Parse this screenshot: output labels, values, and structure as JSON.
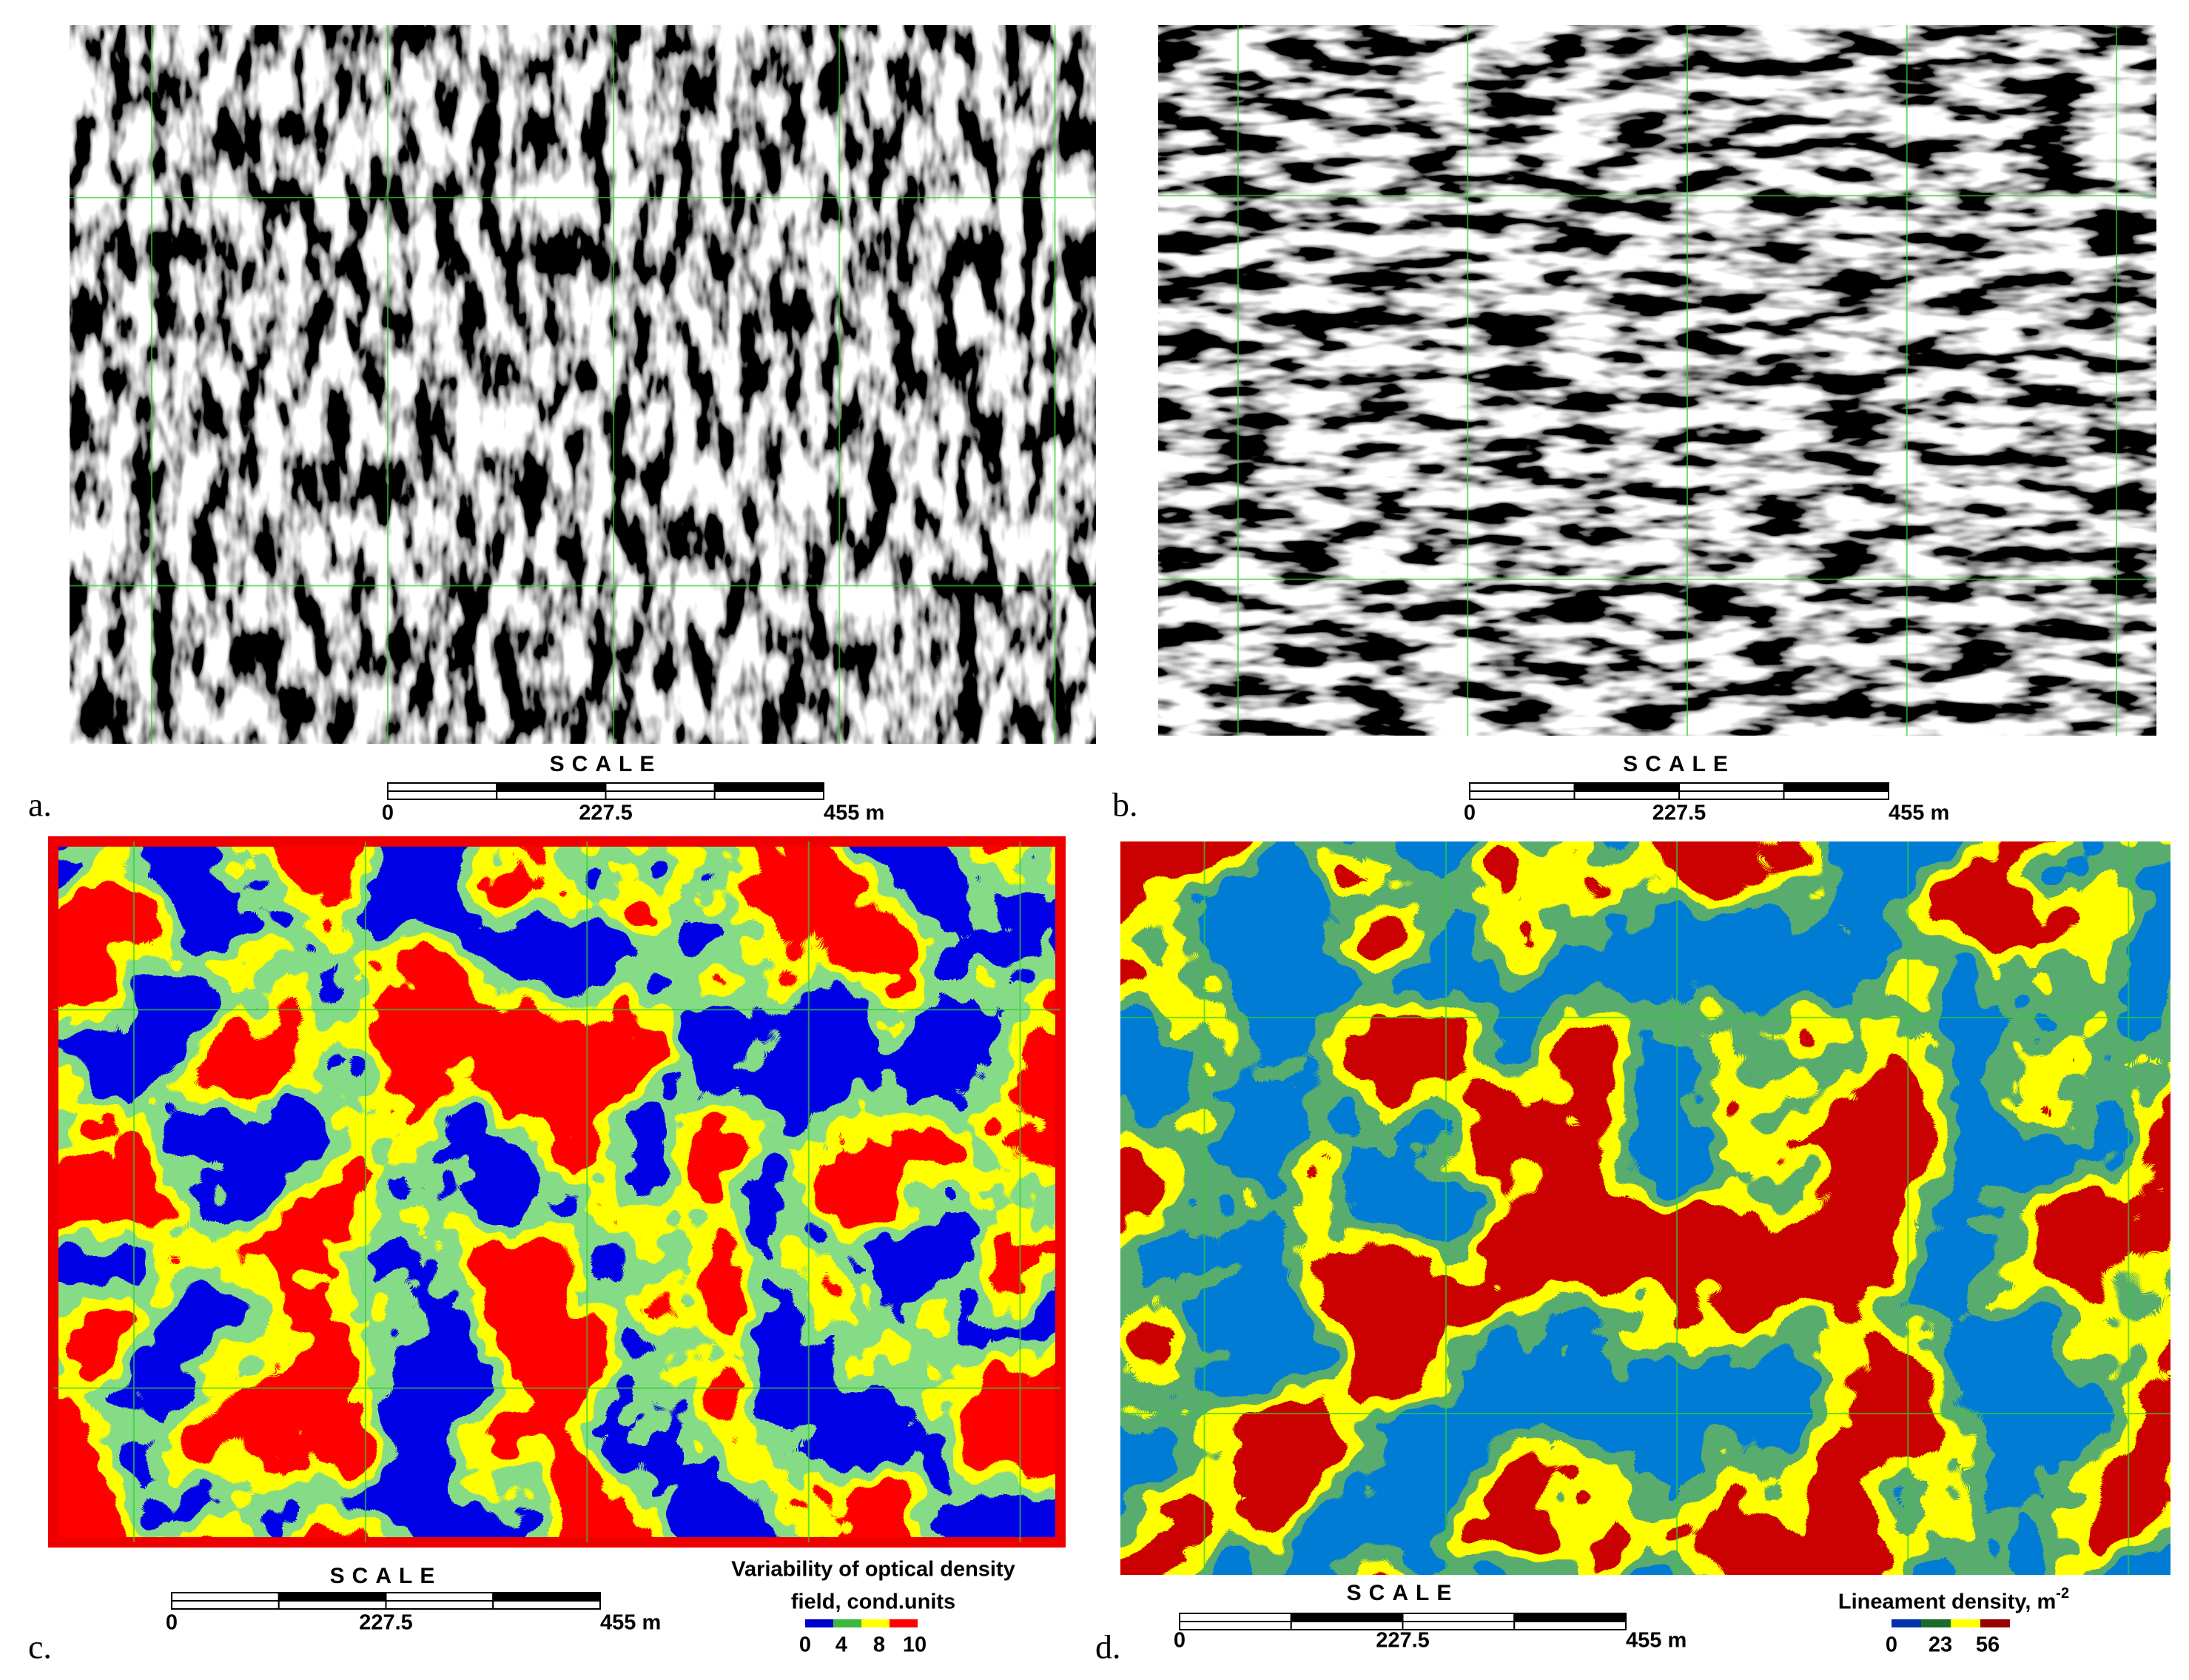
{
  "panels": [
    {
      "label": "a.",
      "scale": {
        "title": "SCALE",
        "labels": [
          "0",
          "227.5",
          "455 m"
        ]
      }
    },
    {
      "label": "b.",
      "scale": {
        "title": "SCALE",
        "labels": [
          "0",
          "227.5",
          "455 m"
        ]
      }
    },
    {
      "label": "c.",
      "scale": {
        "title": "SCALE",
        "labels": [
          "0",
          "227.5",
          "455 m"
        ]
      },
      "legend": {
        "title": [
          "Variability of optical density",
          "field, cond.units"
        ],
        "labels": [
          "0",
          "4",
          "8",
          "10"
        ]
      }
    },
    {
      "label": "d.",
      "scale": {
        "title": "SCALE",
        "labels": [
          "0",
          "227.5",
          "455 m"
        ]
      },
      "legend": {
        "title": [
          "Lineament density, m"
        ],
        "superscript": "-2",
        "labels": [
          "0",
          "23",
          "56"
        ]
      }
    }
  ]
}
